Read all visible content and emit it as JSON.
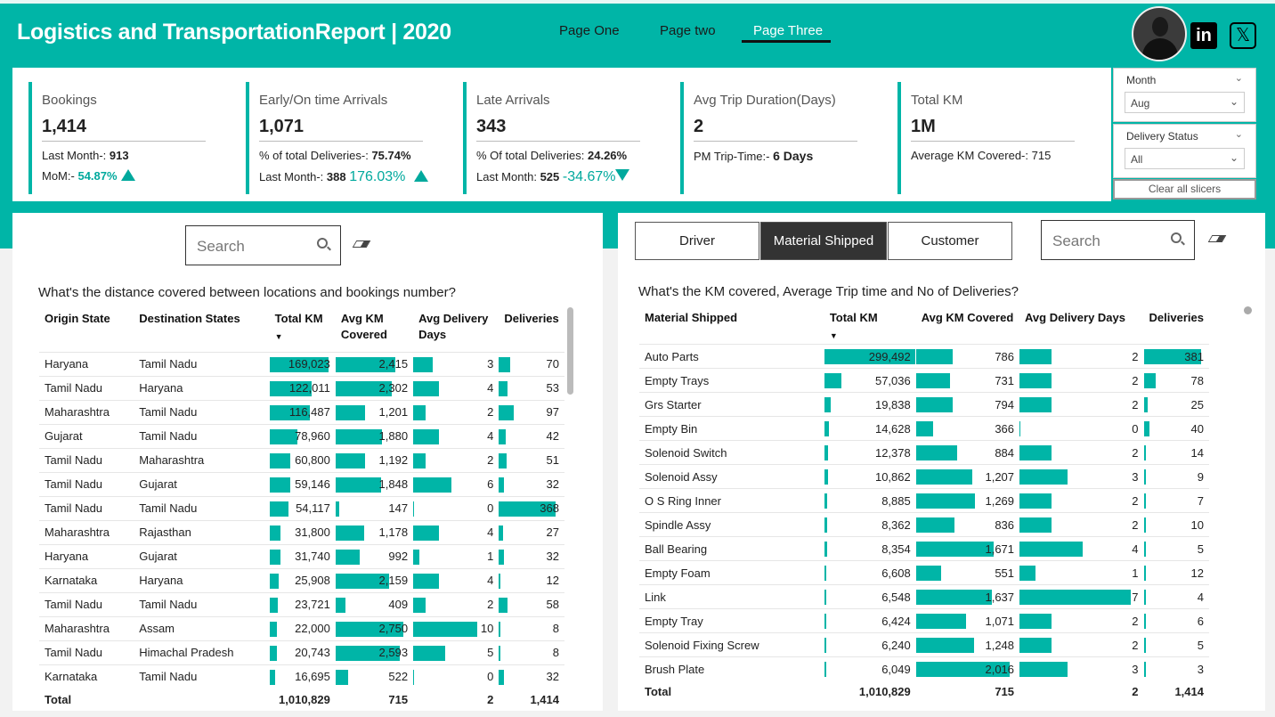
{
  "header": {
    "title": "Logistics and TransportationReport | 2020",
    "nav": [
      "Page One",
      "Page two",
      "Page Three"
    ],
    "active_nav": "Page Three",
    "social": {
      "linkedin": "in",
      "x": "𝕏"
    }
  },
  "colors": {
    "accent": "#00b5a7",
    "dark": "#333333"
  },
  "kpis": {
    "bookings": {
      "label": "Bookings",
      "value": "1,414",
      "sub1_label": "Last Month-:",
      "sub1_value": "913",
      "sub2_label": "MoM:-",
      "sub2_value": "54.87%"
    },
    "ontime": {
      "label": "Early/On time Arrivals",
      "value": "1,071",
      "sub1_label": "% of total Deliveries-:",
      "sub1_value": "75.74%",
      "sub2_label": "Last Month-:",
      "sub2_value": "388",
      "sub2_pct": "176.03%"
    },
    "late": {
      "label": "Late Arrivals",
      "value": "343",
      "sub1_label": "% Of total Deliveries:",
      "sub1_value": "24.26%",
      "sub2_label": "Last Month:",
      "sub2_value": "525",
      "sub2_pct": "-34.67%"
    },
    "avgtrip": {
      "label": "Avg Trip Duration(Days)",
      "value": "2",
      "sub1_label": "PM Trip-Time:-",
      "sub1_value": "6 Days"
    },
    "totalkm": {
      "label": "Total KM",
      "value": "1M",
      "sub1_label": "Average KM Covered-:",
      "sub1_value": "715"
    }
  },
  "slicers": {
    "month": {
      "title": "Month",
      "value": "Aug"
    },
    "status": {
      "title": "Delivery Status",
      "value": "All"
    },
    "clear": "Clear all slicers"
  },
  "left": {
    "search_placeholder": "Search",
    "question": "What's the distance covered between locations and bookings number?",
    "columns": [
      "Origin State",
      "Destination States",
      "Total KM",
      "Avg KM Covered",
      "Avg Delivery Days",
      "Deliveries"
    ],
    "rows": [
      [
        "Haryana",
        "Tamil Nadu",
        "169,023",
        "2,415",
        "3",
        "70"
      ],
      [
        "Tamil Nadu",
        "Haryana",
        "122,011",
        "2,302",
        "4",
        "53"
      ],
      [
        "Maharashtra",
        "Tamil Nadu",
        "116,487",
        "1,201",
        "2",
        "97"
      ],
      [
        "Gujarat",
        "Tamil Nadu",
        "78,960",
        "1,880",
        "4",
        "42"
      ],
      [
        "Tamil Nadu",
        "Maharashtra",
        "60,800",
        "1,192",
        "2",
        "51"
      ],
      [
        "Tamil Nadu",
        "Gujarat",
        "59,146",
        "1,848",
        "6",
        "32"
      ],
      [
        "Tamil Nadu",
        "Tamil Nadu",
        "54,117",
        "147",
        "0",
        "368"
      ],
      [
        "Maharashtra",
        "Rajasthan",
        "31,800",
        "1,178",
        "4",
        "27"
      ],
      [
        "Haryana",
        "Gujarat",
        "31,740",
        "992",
        "1",
        "32"
      ],
      [
        "Karnataka",
        "Haryana",
        "25,908",
        "2,159",
        "4",
        "12"
      ],
      [
        "Tamil Nadu",
        "Tamil Nadu",
        "23,721",
        "409",
        "2",
        "58"
      ],
      [
        "Maharashtra",
        "Assam",
        "22,000",
        "2,750",
        "10",
        "8"
      ],
      [
        "Tamil Nadu",
        "Himachal Pradesh",
        "20,743",
        "2,593",
        "5",
        "8"
      ],
      [
        "Karnataka",
        "Tamil Nadu",
        "16,695",
        "522",
        "0",
        "32"
      ]
    ],
    "bar_values": [
      [
        169023,
        2415,
        3,
        70
      ],
      [
        122011,
        2302,
        4,
        53
      ],
      [
        116487,
        1201,
        2,
        97
      ],
      [
        78960,
        1880,
        4,
        42
      ],
      [
        60800,
        1192,
        2,
        51
      ],
      [
        59146,
        1848,
        6,
        32
      ],
      [
        54117,
        147,
        0,
        368
      ],
      [
        31800,
        1178,
        4,
        27
      ],
      [
        31740,
        992,
        1,
        32
      ],
      [
        25908,
        2159,
        4,
        12
      ],
      [
        23721,
        409,
        2,
        58
      ],
      [
        22000,
        2750,
        10,
        8
      ],
      [
        20743,
        2593,
        5,
        8
      ],
      [
        16695,
        522,
        0,
        32
      ]
    ],
    "total": [
      "Total",
      "",
      "1,010,829",
      "715",
      "2",
      "1,414"
    ]
  },
  "right": {
    "tabs": [
      "Driver",
      "Material Shipped",
      "Customer"
    ],
    "active_tab": "Material Shipped",
    "search_placeholder": "Search",
    "question": "What's the KM covered, Average Trip time and No of Deliveries?",
    "columns": [
      "Material Shipped",
      "Total KM",
      "Avg KM Covered",
      "Avg Delivery Days",
      "Deliveries"
    ],
    "rows": [
      [
        "Auto Parts",
        "299,492",
        "786",
        "2",
        "381"
      ],
      [
        "Empty Trays",
        "57,036",
        "731",
        "2",
        "78"
      ],
      [
        "Grs Starter",
        "19,838",
        "794",
        "2",
        "25"
      ],
      [
        "Empty Bin",
        "14,628",
        "366",
        "0",
        "40"
      ],
      [
        "Solenoid Switch",
        "12,378",
        "884",
        "2",
        "14"
      ],
      [
        "Solenoid Assy",
        "10,862",
        "1,207",
        "3",
        "9"
      ],
      [
        "O S Ring Inner",
        "8,885",
        "1,269",
        "2",
        "7"
      ],
      [
        "Spindle Assy",
        "8,362",
        "836",
        "2",
        "10"
      ],
      [
        "Ball Bearing",
        "8,354",
        "1,671",
        "4",
        "5"
      ],
      [
        "Empty Foam",
        "6,608",
        "551",
        "1",
        "12"
      ],
      [
        "Link",
        "6,548",
        "1,637",
        "7",
        "4"
      ],
      [
        "Empty Tray",
        "6,424",
        "1,071",
        "2",
        "6"
      ],
      [
        "Solenoid Fixing Screw",
        "6,240",
        "1,248",
        "2",
        "5"
      ],
      [
        "Brush Plate",
        "6,049",
        "2,016",
        "3",
        "3"
      ]
    ],
    "bar_values": [
      [
        299492,
        786,
        2,
        381
      ],
      [
        57036,
        731,
        2,
        78
      ],
      [
        19838,
        794,
        2,
        25
      ],
      [
        14628,
        366,
        0,
        40
      ],
      [
        12378,
        884,
        2,
        14
      ],
      [
        10862,
        1207,
        3,
        9
      ],
      [
        8885,
        1269,
        2,
        7
      ],
      [
        8362,
        836,
        2,
        10
      ],
      [
        8354,
        1671,
        4,
        5
      ],
      [
        6608,
        551,
        1,
        12
      ],
      [
        6548,
        1637,
        7,
        4
      ],
      [
        6424,
        1071,
        2,
        6
      ],
      [
        6240,
        1248,
        2,
        5
      ],
      [
        6049,
        2016,
        3,
        3
      ]
    ],
    "total": [
      "Total",
      "1,010,829",
      "715",
      "2",
      "1,414"
    ]
  }
}
